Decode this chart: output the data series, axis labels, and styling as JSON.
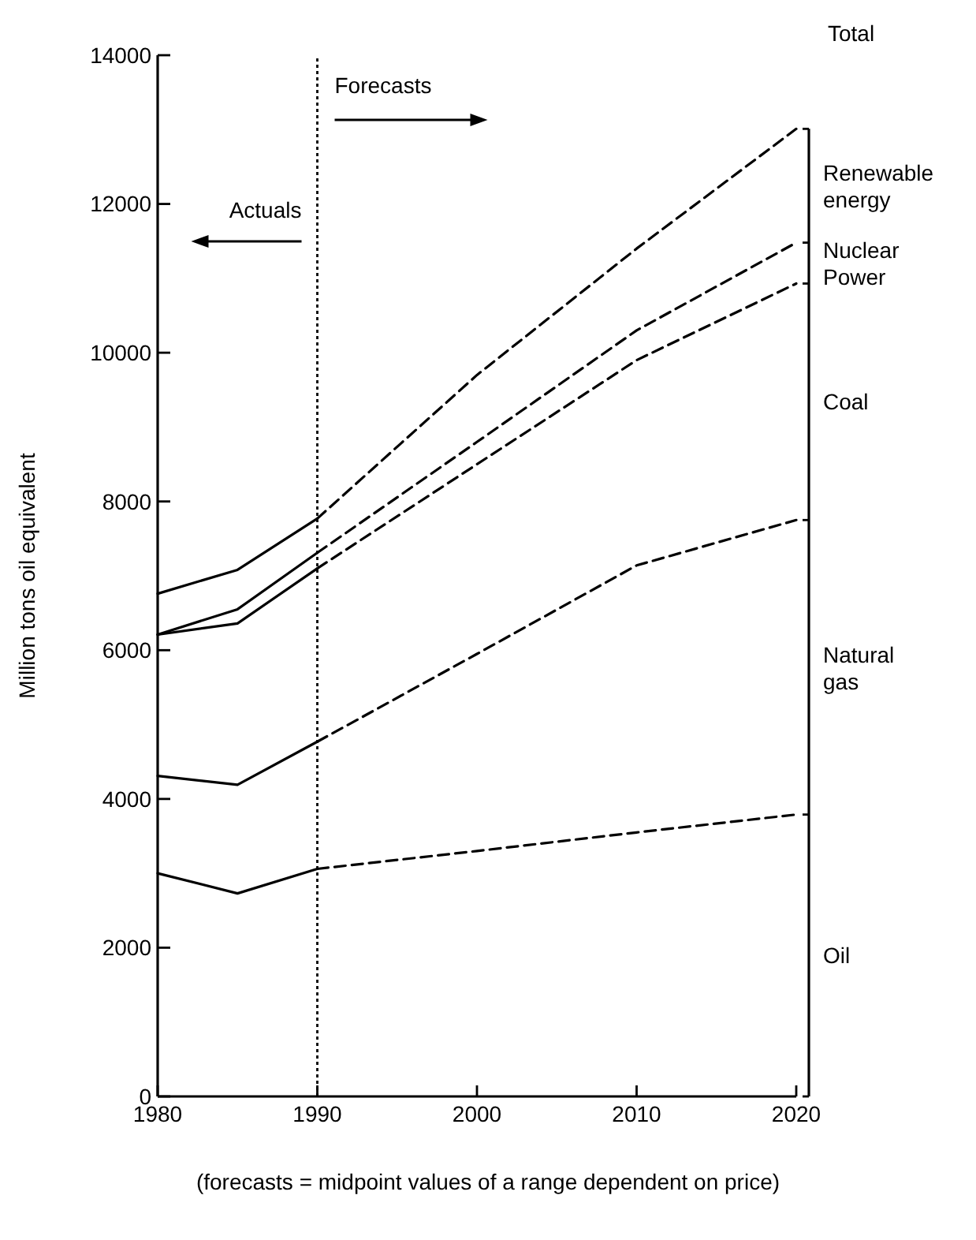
{
  "chart_data": {
    "type": "line",
    "ylabel": "Million tons oil equivalent",
    "xlim": [
      1980,
      2020
    ],
    "xticks": [
      1980,
      1990,
      2000,
      2010,
      2020
    ],
    "ylim": [
      0,
      14000
    ],
    "yticks": [
      0,
      2000,
      4000,
      6000,
      8000,
      10000,
      12000,
      14000
    ],
    "grid": false,
    "ref_lines": [
      {
        "axis": "x",
        "value": 1990,
        "line_style": "dotted",
        "color": "#000000"
      }
    ],
    "series": [
      {
        "color": "#000000",
        "line_style": "solid",
        "x": [
          1980,
          1985,
          1990
        ],
        "values": [
          3000,
          2730,
          3060
        ]
      },
      {
        "color": "#000000",
        "line_style": "dashed",
        "x": [
          1990,
          2000,
          2010,
          2020
        ],
        "values": [
          3060,
          3300,
          3550,
          3790
        ]
      },
      {
        "color": "#000000",
        "line_style": "solid",
        "x": [
          1980,
          1985,
          1990
        ],
        "values": [
          4310,
          4190,
          4770
        ]
      },
      {
        "color": "#000000",
        "line_style": "dashed",
        "x": [
          1990,
          2000,
          2010,
          2020
        ],
        "values": [
          4770,
          5950,
          7140,
          7750
        ]
      },
      {
        "color": "#000000",
        "line_style": "solid",
        "x": [
          1980,
          1985,
          1990
        ],
        "values": [
          6210,
          6360,
          7100
        ]
      },
      {
        "color": "#000000",
        "line_style": "dashed",
        "x": [
          1990,
          2000,
          2010,
          2020
        ],
        "values": [
          7100,
          8500,
          9900,
          10930
        ]
      },
      {
        "color": "#000000",
        "line_style": "solid",
        "x": [
          1980,
          1985,
          1990
        ],
        "values": [
          6210,
          6550,
          7310
        ]
      },
      {
        "color": "#000000",
        "line_style": "dashed",
        "x": [
          1990,
          2000,
          2010,
          2020
        ],
        "values": [
          7310,
          8800,
          10300,
          11480
        ]
      },
      {
        "color": "#000000",
        "line_style": "solid",
        "x": [
          1980,
          1985,
          1990
        ],
        "values": [
          6760,
          7080,
          7770
        ]
      },
      {
        "color": "#000000",
        "line_style": "dashed",
        "x": [
          1990,
          2000,
          2010,
          2020
        ],
        "values": [
          7770,
          9700,
          11400,
          13010
        ]
      }
    ],
    "annotations": [
      "Total",
      "Actuals",
      "Forecasts",
      "(forecasts = midpoint values of a range dependent on price)",
      "Renewable energy",
      "Nuclear Power",
      "Coal",
      "Natural gas",
      "Oil"
    ]
  }
}
